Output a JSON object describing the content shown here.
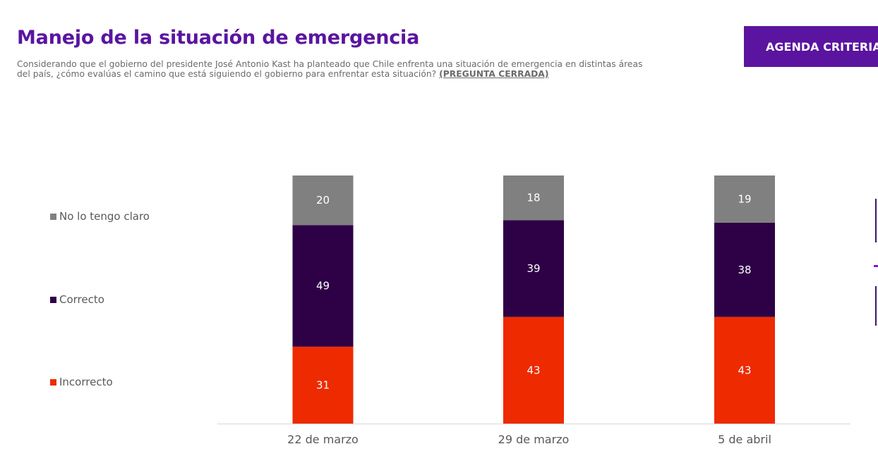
{
  "header": {
    "title": "Manejo de la situación de emergencia",
    "question": "Considerando que el gobierno del presidente José Antonio Kast ha planteado que Chile enfrenta una situación de emergencia en distintas áreas del país, ¿cómo evalúas el camino que está siguiendo el gobierno para enfrentar esta situación? ",
    "question_tag": "(PREGUNTA CERRADA)",
    "badge": "AGENDA CRITERIA"
  },
  "chart_data": {
    "type": "bar",
    "stacked": true,
    "title": "Manejo de la situación de emergencia",
    "xlabel": "",
    "ylabel": "",
    "ylim": [
      0,
      100
    ],
    "grid": false,
    "legend_position": "left",
    "categories": [
      "22 de marzo",
      "29 de marzo",
      "5 de abril"
    ],
    "series": [
      {
        "name": "Incorrecto",
        "color": "#ee2a00",
        "values": [
          31,
          43,
          43
        ]
      },
      {
        "name": "Correcto",
        "color": "#2e0046",
        "values": [
          49,
          39,
          38
        ]
      },
      {
        "name": "No lo tengo claro",
        "color": "#808080",
        "values": [
          20,
          18,
          19
        ]
      }
    ]
  }
}
